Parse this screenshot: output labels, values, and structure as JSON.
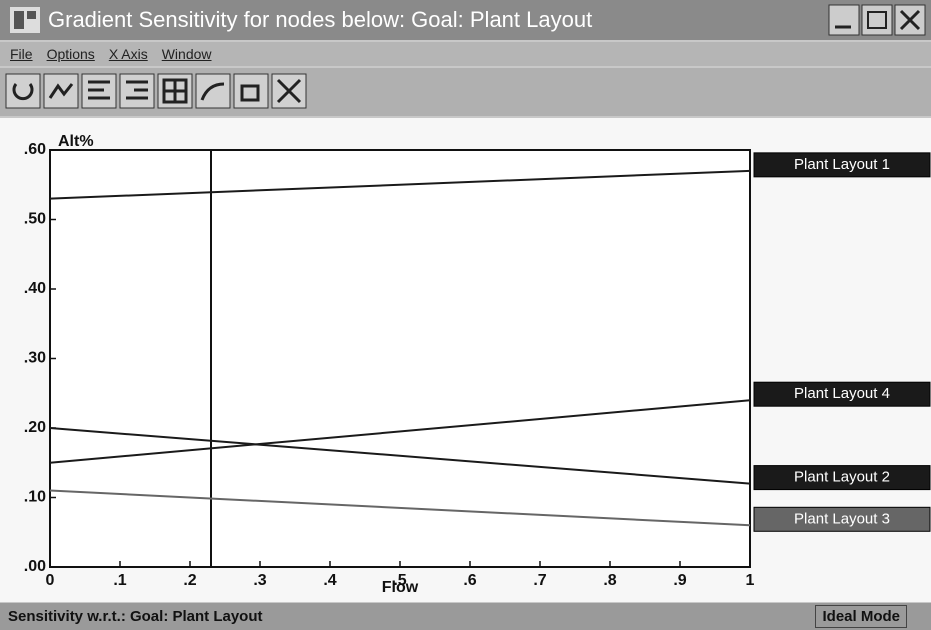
{
  "window": {
    "title": "Gradient Sensitivity for nodes below: Goal: Plant Layout",
    "menu": [
      "File",
      "Options",
      "X Axis",
      "Window"
    ],
    "status": "Sensitivity w.r.t.: Goal: Plant Layout",
    "mode": "Ideal Mode"
  },
  "chart_data": {
    "type": "line",
    "y_label": "Alt%",
    "x_label": "Flow",
    "x": [
      0,
      1
    ],
    "series": [
      {
        "name": "Plant Layout 1",
        "color": "#1a1a1a",
        "values": [
          0.53,
          0.57
        ]
      },
      {
        "name": "Plant Layout 4",
        "color": "#1a1a1a",
        "values": [
          0.15,
          0.24
        ]
      },
      {
        "name": "Plant Layout 2",
        "color": "#1a1a1a",
        "values": [
          0.2,
          0.12
        ]
      },
      {
        "name": "Plant Layout 3",
        "color": "#666666",
        "values": [
          0.11,
          0.06
        ]
      }
    ],
    "xlim": [
      0,
      1
    ],
    "ylim": [
      0,
      0.6
    ],
    "xticks": [
      0,
      {
        "value": 0.1,
        "label": ".1"
      },
      {
        "value": 0.2,
        "label": ".2"
      },
      {
        "value": 0.3,
        "label": ".3"
      },
      {
        "value": 0.4,
        "label": ".4"
      },
      {
        "value": 0.5,
        "label": ".5"
      },
      {
        "value": 0.6,
        "label": ".6"
      },
      {
        "value": 0.7,
        "label": ".7"
      },
      {
        "value": 0.8,
        "label": ".8"
      },
      {
        "value": 0.9,
        "label": ".9"
      },
      1
    ],
    "yticks": [
      {
        "value": 0,
        "label": ".00"
      },
      {
        "value": 0.1,
        "label": ".10"
      },
      {
        "value": 0.2,
        "label": ".20"
      },
      {
        "value": 0.3,
        "label": ".30"
      },
      {
        "value": 0.4,
        "label": ".40"
      },
      {
        "value": 0.5,
        "label": ".50"
      },
      {
        "value": 0.6,
        "label": ".60"
      }
    ],
    "cursor_x": 0.23
  }
}
